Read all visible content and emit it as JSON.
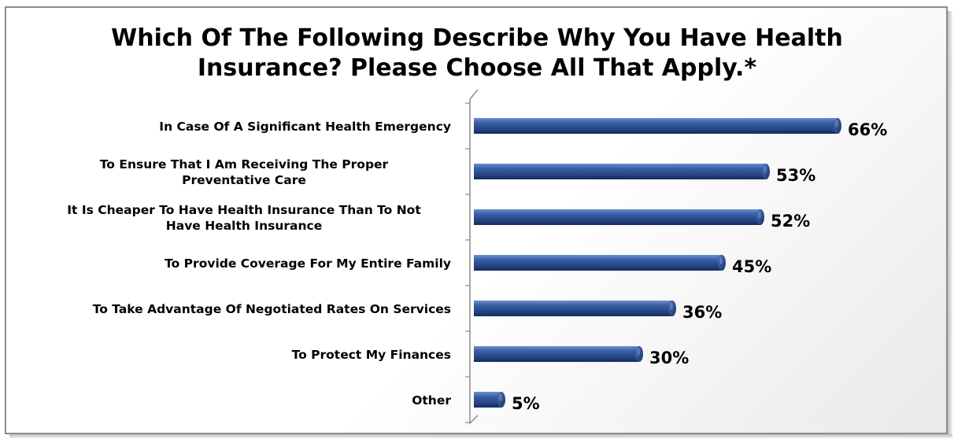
{
  "chart_data": {
    "type": "bar",
    "orientation": "horizontal",
    "title_lines": [
      "Which Of The Following Describe Why You Have Health",
      "Insurance?  Please Choose All That Apply.*"
    ],
    "categories": [
      [
        "In Case Of A Significant Health Emergency"
      ],
      [
        "To Ensure That I Am Receiving The Proper",
        "Preventative Care"
      ],
      [
        "It Is Cheaper To Have Health Insurance Than To Not",
        "Have Health Insurance"
      ],
      [
        "To Provide Coverage For My Entire Family"
      ],
      [
        "To Take Advantage Of Negotiated Rates On Services"
      ],
      [
        "To Protect My Finances"
      ],
      [
        "Other"
      ]
    ],
    "values": [
      66,
      53,
      52,
      45,
      36,
      30,
      5
    ],
    "value_labels": [
      "66%",
      "53%",
      "52%",
      "45%",
      "36%",
      "30%",
      "5%"
    ],
    "unit": "%",
    "grid": false,
    "legend": "none",
    "colors": {
      "bar_light": "#4a70b5",
      "bar_mid": "#2c4f91",
      "bar_dark": "#13295a",
      "axis": "#8c8c8c",
      "text": "#000000"
    }
  }
}
